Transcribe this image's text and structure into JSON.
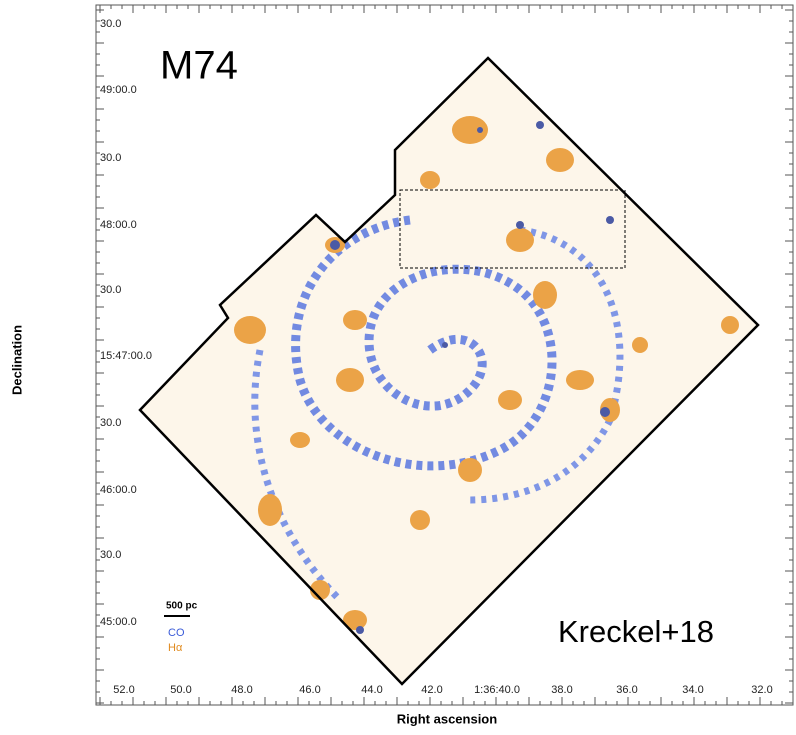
{
  "figure": {
    "object_label": "M74",
    "credit": "Kreckel+18",
    "x_axis_label": "Right ascension",
    "y_axis_label": "Declination",
    "x_tick_labels": [
      "52.0",
      "50.0",
      "48.0",
      "46.0",
      "44.0",
      "42.0",
      "1:36:40.0",
      "38.0",
      "36.0",
      "34.0",
      "32.0"
    ],
    "y_tick_labels": [
      "30.0",
      "49:00.0",
      "30.0",
      "48:00.0",
      "30.0",
      "15:47:00.0",
      "30.0",
      "46:00.0",
      "30.0",
      "45:00.0"
    ],
    "legend": {
      "scale": "500 pc",
      "co": "CO",
      "halpha": "Hα"
    }
  }
}
